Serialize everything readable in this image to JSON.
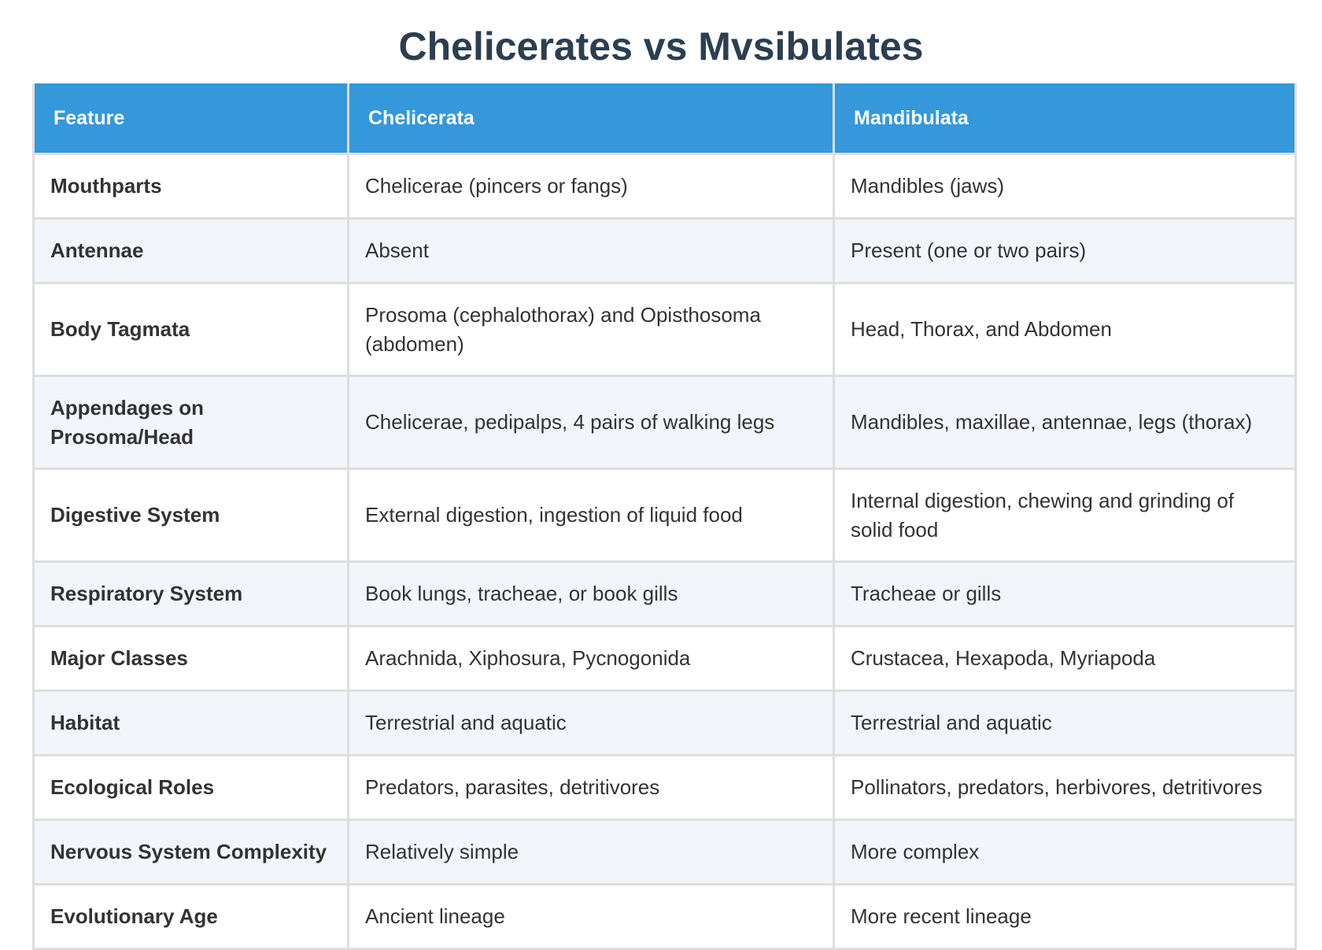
{
  "title": "Chelicerates vs Mvsibulates",
  "table": {
    "headers": [
      "Feature",
      "Chelicerata",
      "Mandibulata"
    ],
    "rows": [
      [
        "Mouthparts",
        "Chelicerae (pincers or fangs)",
        "Mandibles (jaws)"
      ],
      [
        "Antennae",
        "Absent",
        "Present (one or two pairs)"
      ],
      [
        "Body Tagmata",
        "Prosoma (cephalothorax) and Opisthosoma (abdomen)",
        "Head, Thorax, and Abdomen"
      ],
      [
        "Appendages on Prosoma/Head",
        "Chelicerae, pedipalps, 4 pairs of walking legs",
        "Mandibles, maxillae, antennae, legs (thorax)"
      ],
      [
        "Digestive System",
        "External digestion, ingestion of liquid food",
        "Internal digestion, chewing and grinding of solid food"
      ],
      [
        "Respiratory System",
        "Book lungs, tracheae, or book gills",
        "Tracheae or gills"
      ],
      [
        "Major Classes",
        "Arachnida, Xiphosura, Pycnogonida",
        "Crustacea, Hexapoda, Myriapoda"
      ],
      [
        "Habitat",
        "Terrestrial and aquatic",
        "Terrestrial and aquatic"
      ],
      [
        "Ecological Roles",
        "Predators, parasites, detritivores",
        "Pollinators, predators, herbivores, detritivores"
      ],
      [
        "Nervous System Complexity",
        "Relatively simple",
        "More complex"
      ],
      [
        "Evolutionary Age",
        "Ancient lineage",
        "More recent lineage"
      ]
    ]
  },
  "colors": {
    "header_background": "#3498db",
    "header_text": "#ffffff",
    "title_text": "#2c3e50",
    "row_alt_background": "#f2f5fa",
    "border": "#dedede"
  }
}
